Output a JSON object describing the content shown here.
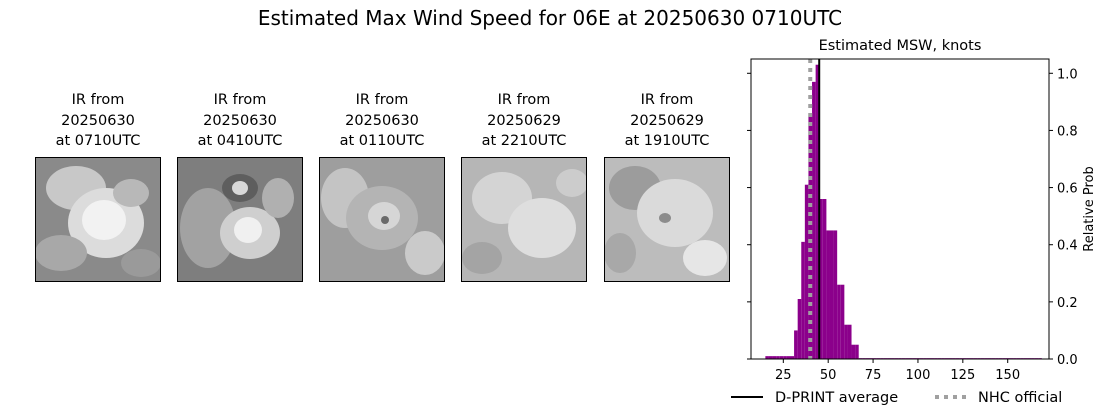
{
  "title": "Estimated Max Wind Speed for 06E at 20250630 0710UTC",
  "ir_panels": [
    {
      "line1": "IR from",
      "line2": "20250630",
      "line3": "at 0710UTC"
    },
    {
      "line1": "IR from",
      "line2": "20250630",
      "line3": "at 0410UTC"
    },
    {
      "line1": "IR from",
      "line2": "20250630",
      "line3": "at 0110UTC"
    },
    {
      "line1": "IR from",
      "line2": "20250629",
      "line3": "at 2210UTC"
    },
    {
      "line1": "IR from",
      "line2": "20250629",
      "line3": "at 1910UTC"
    }
  ],
  "chart_data": {
    "type": "bar",
    "title": "Estimated MSW, knots",
    "xlabel": "",
    "ylabel": "Relative Prob",
    "xlim": [
      7,
      173
    ],
    "ylim": [
      0,
      1.05
    ],
    "xticks": [
      25,
      50,
      75,
      100,
      125,
      150
    ],
    "yticks": [
      0.0,
      0.2,
      0.4,
      0.6,
      0.8,
      1.0
    ],
    "ytick_labels": [
      "0.0",
      "0.2",
      "0.4",
      "0.6",
      "0.8",
      "1.0"
    ],
    "y_axis_side": "right",
    "bar_width_knots": 2,
    "bar_color": "#8b008b",
    "bins_left_edge": [
      15,
      17,
      19,
      21,
      23,
      25,
      27,
      29,
      31,
      33,
      35,
      37,
      39,
      41,
      43,
      45,
      47,
      49,
      51,
      53,
      55,
      57,
      59,
      61,
      63,
      65,
      67,
      69,
      71,
      73,
      75,
      77,
      79,
      81,
      83,
      85,
      87,
      89,
      91,
      93,
      95,
      97,
      99,
      101,
      103,
      105,
      107,
      109,
      111,
      113,
      115,
      117,
      119,
      121,
      123,
      125,
      127,
      129,
      131,
      133,
      135,
      137,
      139,
      141,
      143,
      145,
      147,
      149,
      151,
      153,
      155,
      157,
      159,
      161,
      163,
      165,
      167
    ],
    "values": [
      0.01,
      0.01,
      0.01,
      0.01,
      0.01,
      0.01,
      0.01,
      0.01,
      0.1,
      0.21,
      0.41,
      0.61,
      0.85,
      0.97,
      1.03,
      0.56,
      0.56,
      0.45,
      0.45,
      0.45,
      0.26,
      0.26,
      0.12,
      0.12,
      0.05,
      0.05,
      0.003,
      0.003,
      0.003,
      0.003,
      0.003,
      0.003,
      0.003,
      0.003,
      0.003,
      0.003,
      0.003,
      0.003,
      0.003,
      0.003,
      0.003,
      0.003,
      0.003,
      0.003,
      0.003,
      0.003,
      0.003,
      0.003,
      0.003,
      0.003,
      0.003,
      0.003,
      0.003,
      0.003,
      0.003,
      0.003,
      0.003,
      0.003,
      0.003,
      0.003,
      0.003,
      0.003,
      0.003,
      0.003,
      0.003,
      0.003,
      0.003,
      0.003,
      0.003,
      0.003,
      0.003,
      0.003,
      0.003,
      0.003,
      0.003,
      0.003,
      0.003
    ],
    "dprint_average": 45,
    "nhc_official": 40,
    "legend": [
      {
        "label": "D-PRINT average",
        "style": "solid",
        "color": "#000000"
      },
      {
        "label": "NHC official",
        "style": "dotted",
        "color": "#a0a0a0"
      }
    ],
    "legend_placement": "bottom"
  }
}
